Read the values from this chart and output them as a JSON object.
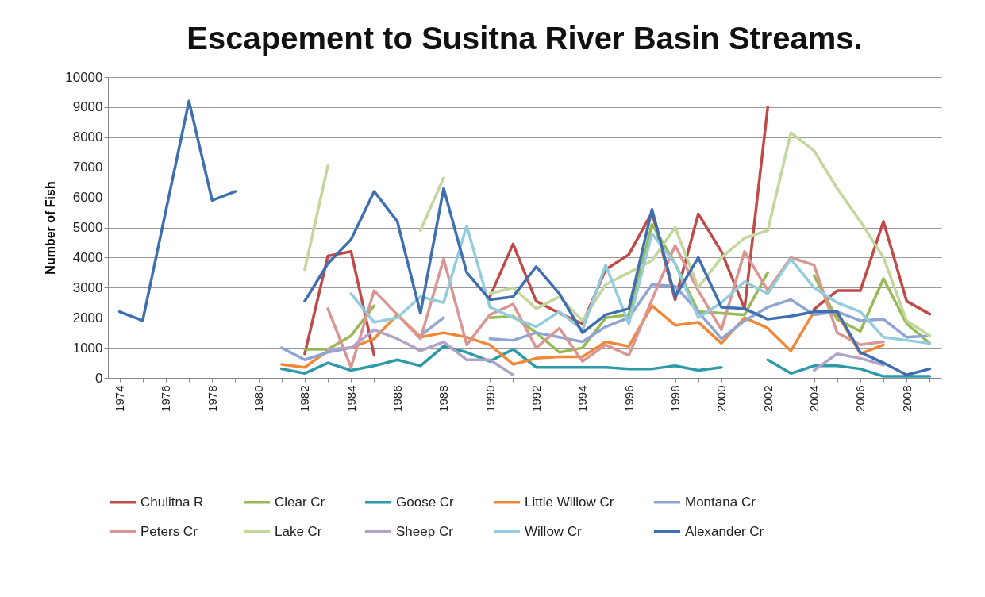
{
  "chart_data": {
    "type": "line",
    "title": "Escapement to Susitna River Basin Streams.",
    "ylabel": "Number of Fish",
    "categories": [
      "1974",
      null,
      "1976",
      null,
      "1978",
      null,
      "1980",
      null,
      "1982",
      null,
      "1984",
      null,
      "1986",
      null,
      "1988",
      null,
      "1990",
      null,
      "1992",
      null,
      "1994",
      null,
      "1996",
      null,
      "1998",
      null,
      "2000",
      null,
      "2002",
      null,
      "2004",
      null,
      "2006",
      null,
      "2008",
      null
    ],
    "ylim": [
      0,
      10000
    ],
    "yticks": [
      0,
      1000,
      2000,
      3000,
      4000,
      5000,
      6000,
      7000,
      8000,
      9000,
      10000
    ],
    "grid": "y",
    "legend": "bottom",
    "marker": "none",
    "line_style": "solid",
    "series": [
      {
        "name": "Chulitna R",
        "color": "#be4b48",
        "values": [
          null,
          null,
          null,
          null,
          null,
          null,
          null,
          null,
          800,
          4050,
          4200,
          750,
          null,
          null,
          null,
          null,
          2700,
          4450,
          2550,
          2150,
          1800,
          3600,
          4100,
          5500,
          2600,
          5450,
          4200,
          2300,
          9000,
          null,
          2280,
          2900,
          2900,
          5200,
          2550,
          2120
        ]
      },
      {
        "name": "Clear Cr",
        "color": "#98b954",
        "values": [
          null,
          null,
          null,
          null,
          null,
          null,
          null,
          null,
          950,
          950,
          1400,
          2400,
          null,
          null,
          null,
          null,
          2000,
          2050,
          1500,
          850,
          1000,
          2000,
          2100,
          5100,
          3800,
          2200,
          2150,
          2100,
          3500,
          null,
          3400,
          1950,
          1550,
          3300,
          1800,
          1150
        ]
      },
      {
        "name": "Goose Cr",
        "color": "#2e9aa8",
        "values": [
          null,
          null,
          null,
          null,
          null,
          null,
          null,
          300,
          150,
          500,
          250,
          400,
          600,
          400,
          1050,
          850,
          550,
          950,
          350,
          350,
          350,
          350,
          300,
          300,
          400,
          250,
          350,
          null,
          600,
          150,
          400,
          400,
          300,
          50,
          50,
          50
        ]
      },
      {
        "name": "Little Willow Cr",
        "color": "#f0883a",
        "values": [
          null,
          null,
          null,
          null,
          null,
          null,
          null,
          450,
          350,
          900,
          1000,
          1300,
          2100,
          1350,
          1500,
          1350,
          1100,
          450,
          650,
          700,
          700,
          1200,
          1050,
          2400,
          1750,
          1850,
          1150,
          2000,
          1650,
          900,
          2200,
          2150,
          800,
          1100,
          null,
          null
        ]
      },
      {
        "name": "Montana Cr",
        "color": "#8ea5d3",
        "values": [
          null,
          null,
          null,
          null,
          null,
          null,
          null,
          1000,
          600,
          850,
          1000,
          null,
          null,
          1400,
          2000,
          null,
          1300,
          1250,
          1500,
          1350,
          1200,
          1700,
          2000,
          3100,
          3050,
          2200,
          1300,
          1900,
          2350,
          2600,
          2100,
          2200,
          1900,
          1950,
          1350,
          1400
        ]
      },
      {
        "name": "Peters Cr",
        "color": "#d99694",
        "values": [
          null,
          null,
          null,
          null,
          null,
          null,
          null,
          null,
          null,
          2300,
          350,
          2900,
          2100,
          1300,
          3950,
          1100,
          2100,
          2450,
          1000,
          1650,
          550,
          1100,
          750,
          2600,
          4400,
          2900,
          1600,
          4200,
          2900,
          4000,
          3750,
          1500,
          1100,
          1200,
          null,
          null
        ]
      },
      {
        "name": "Lake Cr",
        "color": "#c3d69b",
        "values": [
          null,
          null,
          null,
          null,
          null,
          null,
          null,
          null,
          3600,
          7050,
          null,
          null,
          null,
          4900,
          6650,
          null,
          2800,
          3000,
          2300,
          2700,
          1900,
          3100,
          3500,
          3900,
          5000,
          3000,
          4000,
          4650,
          4900,
          8150,
          7550,
          6300,
          5200,
          4000,
          1900,
          1400
        ]
      },
      {
        "name": "Sheep Cr",
        "color": "#b3a2c7",
        "values": [
          null,
          null,
          null,
          null,
          null,
          null,
          null,
          null,
          null,
          950,
          1000,
          1600,
          1300,
          900,
          1200,
          600,
          600,
          100,
          null,
          null,
          null,
          null,
          null,
          null,
          null,
          null,
          null,
          null,
          null,
          null,
          250,
          800,
          650,
          430,
          null,
          null
        ]
      },
      {
        "name": "Willow Cr",
        "color": "#93cddd",
        "values": [
          null,
          null,
          null,
          null,
          null,
          null,
          null,
          null,
          null,
          null,
          2800,
          1850,
          2000,
          2700,
          2500,
          5050,
          2350,
          2000,
          1700,
          2200,
          1600,
          3750,
          1800,
          4800,
          3800,
          2000,
          2500,
          3200,
          2800,
          3950,
          3000,
          2500,
          2200,
          1350,
          1250,
          1150
        ]
      },
      {
        "name": "Alexander Cr",
        "color": "#3f6fb0",
        "values": [
          2200,
          1900,
          5550,
          9200,
          5900,
          6200,
          null,
          null,
          2550,
          3800,
          4600,
          6200,
          5200,
          2150,
          6300,
          3500,
          2600,
          2700,
          3700,
          2800,
          1500,
          2100,
          2300,
          5600,
          2700,
          4000,
          2350,
          2300,
          1950,
          2050,
          2200,
          2200,
          850,
          500,
          100,
          300
        ]
      }
    ]
  }
}
